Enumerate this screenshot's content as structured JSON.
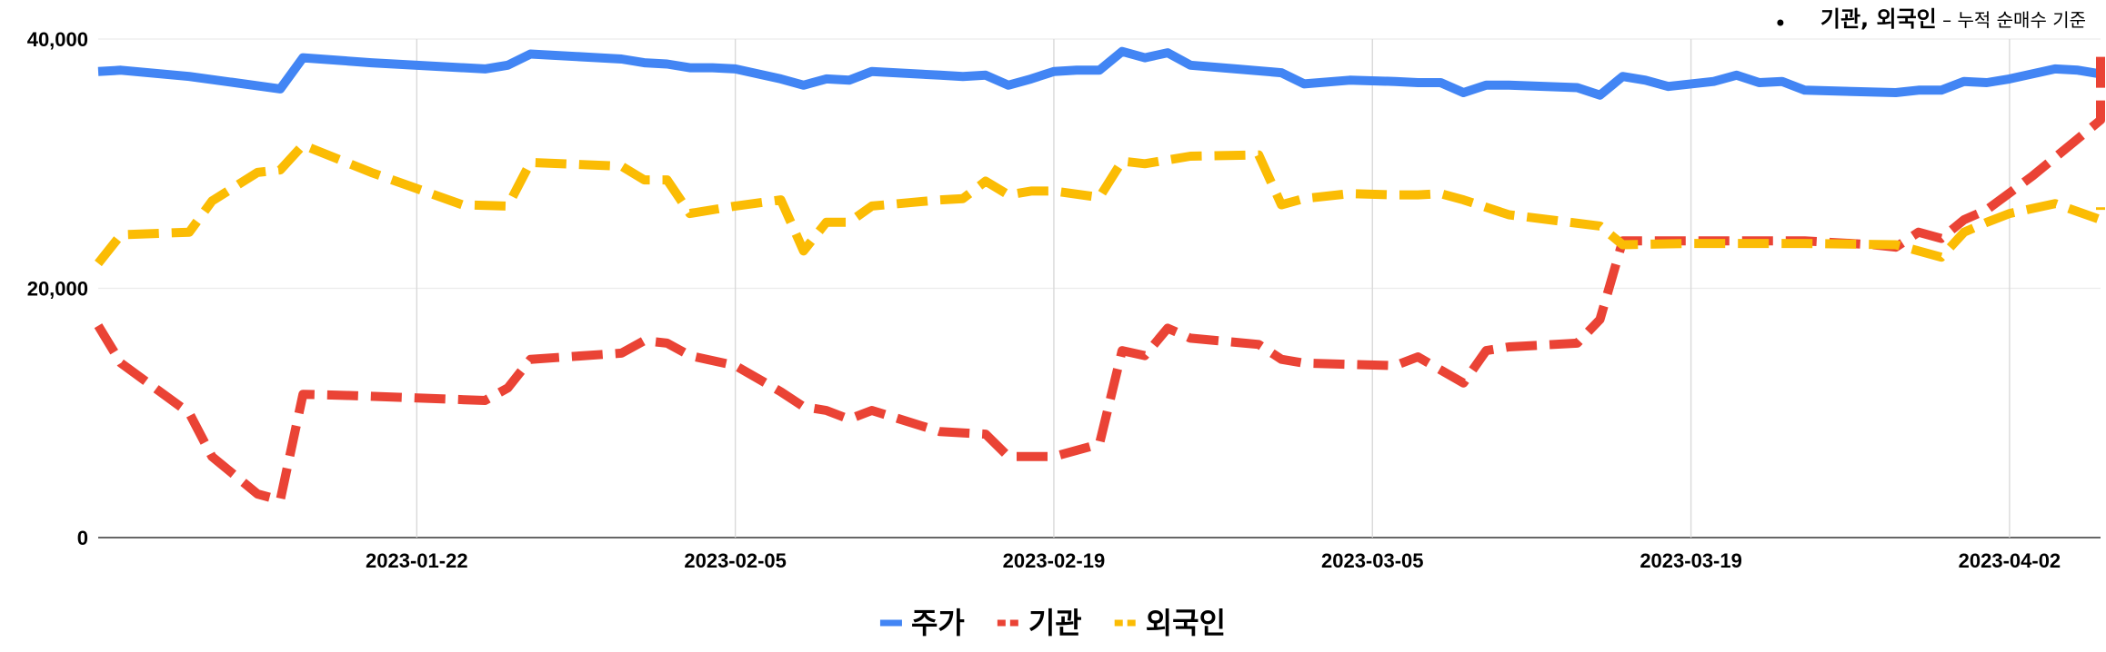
{
  "chart_data": {
    "type": "line",
    "title": "",
    "xlabel": "",
    "ylabel": "",
    "annotation": {
      "main": "기관, 외국인",
      "sub": " – 누적 순매수 기준",
      "position": "top-right"
    },
    "x_range": [
      "2023-01-08",
      "2023-04-06"
    ],
    "ylim": [
      0,
      40000
    ],
    "yticks": [
      0,
      20000,
      40000
    ],
    "ytick_labels": [
      "0",
      "20,000",
      "40,000"
    ],
    "xticks": [
      "2023-01-22",
      "2023-02-05",
      "2023-02-19",
      "2023-03-05",
      "2023-03-19",
      "2023-04-02"
    ],
    "grid": true,
    "legend": "bottom",
    "series": [
      {
        "name": "주가",
        "color": "#4285f4",
        "dash": "solid",
        "points": [
          [
            "2023-01-08",
            37400
          ],
          [
            "2023-01-09",
            37500
          ],
          [
            "2023-01-12",
            37000
          ],
          [
            "2023-01-16",
            36000
          ],
          [
            "2023-01-17",
            38500
          ],
          [
            "2023-01-20",
            38100
          ],
          [
            "2023-01-25",
            37600
          ],
          [
            "2023-01-26",
            37900
          ],
          [
            "2023-01-27",
            38800
          ],
          [
            "2023-01-30",
            38500
          ],
          [
            "2023-01-31",
            38400
          ],
          [
            "2023-02-01",
            38100
          ],
          [
            "2023-02-02",
            38000
          ],
          [
            "2023-02-03",
            37700
          ],
          [
            "2023-02-04",
            37700
          ],
          [
            "2023-02-05",
            37600
          ],
          [
            "2023-02-07",
            36800
          ],
          [
            "2023-02-08",
            36300
          ],
          [
            "2023-02-09",
            36800
          ],
          [
            "2023-02-10",
            36700
          ],
          [
            "2023-02-11",
            37400
          ],
          [
            "2023-02-14",
            37100
          ],
          [
            "2023-02-15",
            37000
          ],
          [
            "2023-02-16",
            37100
          ],
          [
            "2023-02-17",
            36300
          ],
          [
            "2023-02-18",
            36800
          ],
          [
            "2023-02-19",
            37400
          ],
          [
            "2023-02-20",
            37500
          ],
          [
            "2023-02-21",
            37500
          ],
          [
            "2023-02-22",
            39000
          ],
          [
            "2023-02-23",
            38500
          ],
          [
            "2023-02-24",
            38900
          ],
          [
            "2023-02-25",
            37900
          ],
          [
            "2023-02-27",
            37600
          ],
          [
            "2023-03-01",
            37300
          ],
          [
            "2023-03-02",
            36400
          ],
          [
            "2023-03-04",
            36700
          ],
          [
            "2023-03-06",
            36600
          ],
          [
            "2023-03-07",
            36500
          ],
          [
            "2023-03-08",
            36500
          ],
          [
            "2023-03-09",
            35700
          ],
          [
            "2023-03-10",
            36300
          ],
          [
            "2023-03-11",
            36300
          ],
          [
            "2023-03-14",
            36100
          ],
          [
            "2023-03-15",
            35500
          ],
          [
            "2023-03-16",
            37000
          ],
          [
            "2023-03-17",
            36700
          ],
          [
            "2023-03-18",
            36200
          ],
          [
            "2023-03-20",
            36600
          ],
          [
            "2023-03-21",
            37100
          ],
          [
            "2023-03-22",
            36500
          ],
          [
            "2023-03-23",
            36600
          ],
          [
            "2023-03-24",
            35900
          ],
          [
            "2023-03-28",
            35700
          ],
          [
            "2023-03-29",
            35900
          ],
          [
            "2023-03-30",
            35900
          ],
          [
            "2023-03-31",
            36600
          ],
          [
            "2023-04-01",
            36500
          ],
          [
            "2023-04-02",
            36800
          ],
          [
            "2023-04-04",
            37600
          ],
          [
            "2023-04-05",
            37500
          ],
          [
            "2023-04-06",
            37200
          ],
          [
            "2023-04-06",
            37300
          ],
          [
            "2023-04-06",
            38000
          ]
        ]
      },
      {
        "name": "기관",
        "color": "#ea4335",
        "dash": "dashed",
        "points": [
          [
            "2023-01-08",
            17000
          ],
          [
            "2023-01-09",
            14000
          ],
          [
            "2023-01-12",
            10000
          ],
          [
            "2023-01-13",
            6500
          ],
          [
            "2023-01-15",
            3500
          ],
          [
            "2023-01-16",
            3000
          ],
          [
            "2023-01-17",
            11500
          ],
          [
            "2023-01-19",
            11400
          ],
          [
            "2023-01-25",
            11000
          ],
          [
            "2023-01-26",
            12000
          ],
          [
            "2023-01-27",
            14300
          ],
          [
            "2023-01-31",
            14800
          ],
          [
            "2023-02-01",
            15800
          ],
          [
            "2023-02-02",
            15600
          ],
          [
            "2023-02-03",
            14600
          ],
          [
            "2023-02-05",
            13800
          ],
          [
            "2023-02-07",
            11700
          ],
          [
            "2023-02-08",
            10500
          ],
          [
            "2023-02-09",
            10200
          ],
          [
            "2023-02-10",
            9500
          ],
          [
            "2023-02-11",
            10200
          ],
          [
            "2023-02-14",
            8500
          ],
          [
            "2023-02-16",
            8300
          ],
          [
            "2023-02-17",
            6500
          ],
          [
            "2023-02-18",
            6500
          ],
          [
            "2023-02-19",
            6500
          ],
          [
            "2023-02-21",
            7500
          ],
          [
            "2023-02-22",
            15000
          ],
          [
            "2023-02-23",
            14600
          ],
          [
            "2023-02-24",
            16800
          ],
          [
            "2023-02-25",
            16000
          ],
          [
            "2023-02-28",
            15500
          ],
          [
            "2023-03-01",
            14300
          ],
          [
            "2023-03-02",
            14000
          ],
          [
            "2023-03-06",
            13800
          ],
          [
            "2023-03-07",
            14500
          ],
          [
            "2023-03-09",
            12400
          ],
          [
            "2023-03-10",
            15000
          ],
          [
            "2023-03-11",
            15300
          ],
          [
            "2023-03-14",
            15600
          ],
          [
            "2023-03-15",
            17500
          ],
          [
            "2023-03-16",
            23800
          ],
          [
            "2023-03-19",
            23800
          ],
          [
            "2023-03-21",
            23800
          ],
          [
            "2023-03-24",
            23800
          ],
          [
            "2023-03-27",
            23500
          ],
          [
            "2023-03-28",
            23300
          ],
          [
            "2023-03-29",
            24500
          ],
          [
            "2023-03-30",
            24000
          ],
          [
            "2023-03-31",
            25500
          ],
          [
            "2023-04-01",
            26300
          ],
          [
            "2023-04-03",
            29000
          ],
          [
            "2023-04-05",
            32000
          ],
          [
            "2023-04-06",
            33500
          ],
          [
            "2023-04-06",
            35000
          ],
          [
            "2023-04-06",
            39000
          ]
        ]
      },
      {
        "name": "외국인",
        "color": "#fbbc04",
        "dash": "dashed",
        "points": [
          [
            "2023-01-08",
            22000
          ],
          [
            "2023-01-09",
            24300
          ],
          [
            "2023-01-12",
            24500
          ],
          [
            "2023-01-13",
            27000
          ],
          [
            "2023-01-15",
            29300
          ],
          [
            "2023-01-16",
            29500
          ],
          [
            "2023-01-17",
            31500
          ],
          [
            "2023-01-20",
            29300
          ],
          [
            "2023-01-24",
            26700
          ],
          [
            "2023-01-26",
            26600
          ],
          [
            "2023-01-27",
            30100
          ],
          [
            "2023-01-31",
            29800
          ],
          [
            "2023-02-01",
            28700
          ],
          [
            "2023-02-02",
            28700
          ],
          [
            "2023-02-03",
            26000
          ],
          [
            "2023-02-05",
            26600
          ],
          [
            "2023-02-07",
            27100
          ],
          [
            "2023-02-08",
            23000
          ],
          [
            "2023-02-09",
            25300
          ],
          [
            "2023-02-10",
            25300
          ],
          [
            "2023-02-11",
            26600
          ],
          [
            "2023-02-14",
            27100
          ],
          [
            "2023-02-15",
            27200
          ],
          [
            "2023-02-16",
            28600
          ],
          [
            "2023-02-17",
            27500
          ],
          [
            "2023-02-18",
            27800
          ],
          [
            "2023-02-19",
            27800
          ],
          [
            "2023-02-21",
            27300
          ],
          [
            "2023-02-22",
            30200
          ],
          [
            "2023-02-23",
            30000
          ],
          [
            "2023-02-25",
            30600
          ],
          [
            "2023-02-28",
            30700
          ],
          [
            "2023-03-01",
            26700
          ],
          [
            "2023-03-02",
            27200
          ],
          [
            "2023-03-04",
            27600
          ],
          [
            "2023-03-06",
            27500
          ],
          [
            "2023-03-07",
            27500
          ],
          [
            "2023-03-08",
            27600
          ],
          [
            "2023-03-09",
            27100
          ],
          [
            "2023-03-10",
            26500
          ],
          [
            "2023-03-11",
            25900
          ],
          [
            "2023-03-15",
            25000
          ],
          [
            "2023-03-16",
            23500
          ],
          [
            "2023-03-19",
            23600
          ],
          [
            "2023-03-21",
            23600
          ],
          [
            "2023-03-24",
            23600
          ],
          [
            "2023-03-28",
            23500
          ],
          [
            "2023-03-29",
            23000
          ],
          [
            "2023-03-30",
            22500
          ],
          [
            "2023-03-31",
            24500
          ],
          [
            "2023-04-01",
            25300
          ],
          [
            "2023-04-02",
            26000
          ],
          [
            "2023-04-04",
            26800
          ],
          [
            "2023-04-06",
            25500
          ],
          [
            "2023-04-06",
            25800
          ],
          [
            "2023-04-06",
            26500
          ]
        ]
      }
    ]
  }
}
